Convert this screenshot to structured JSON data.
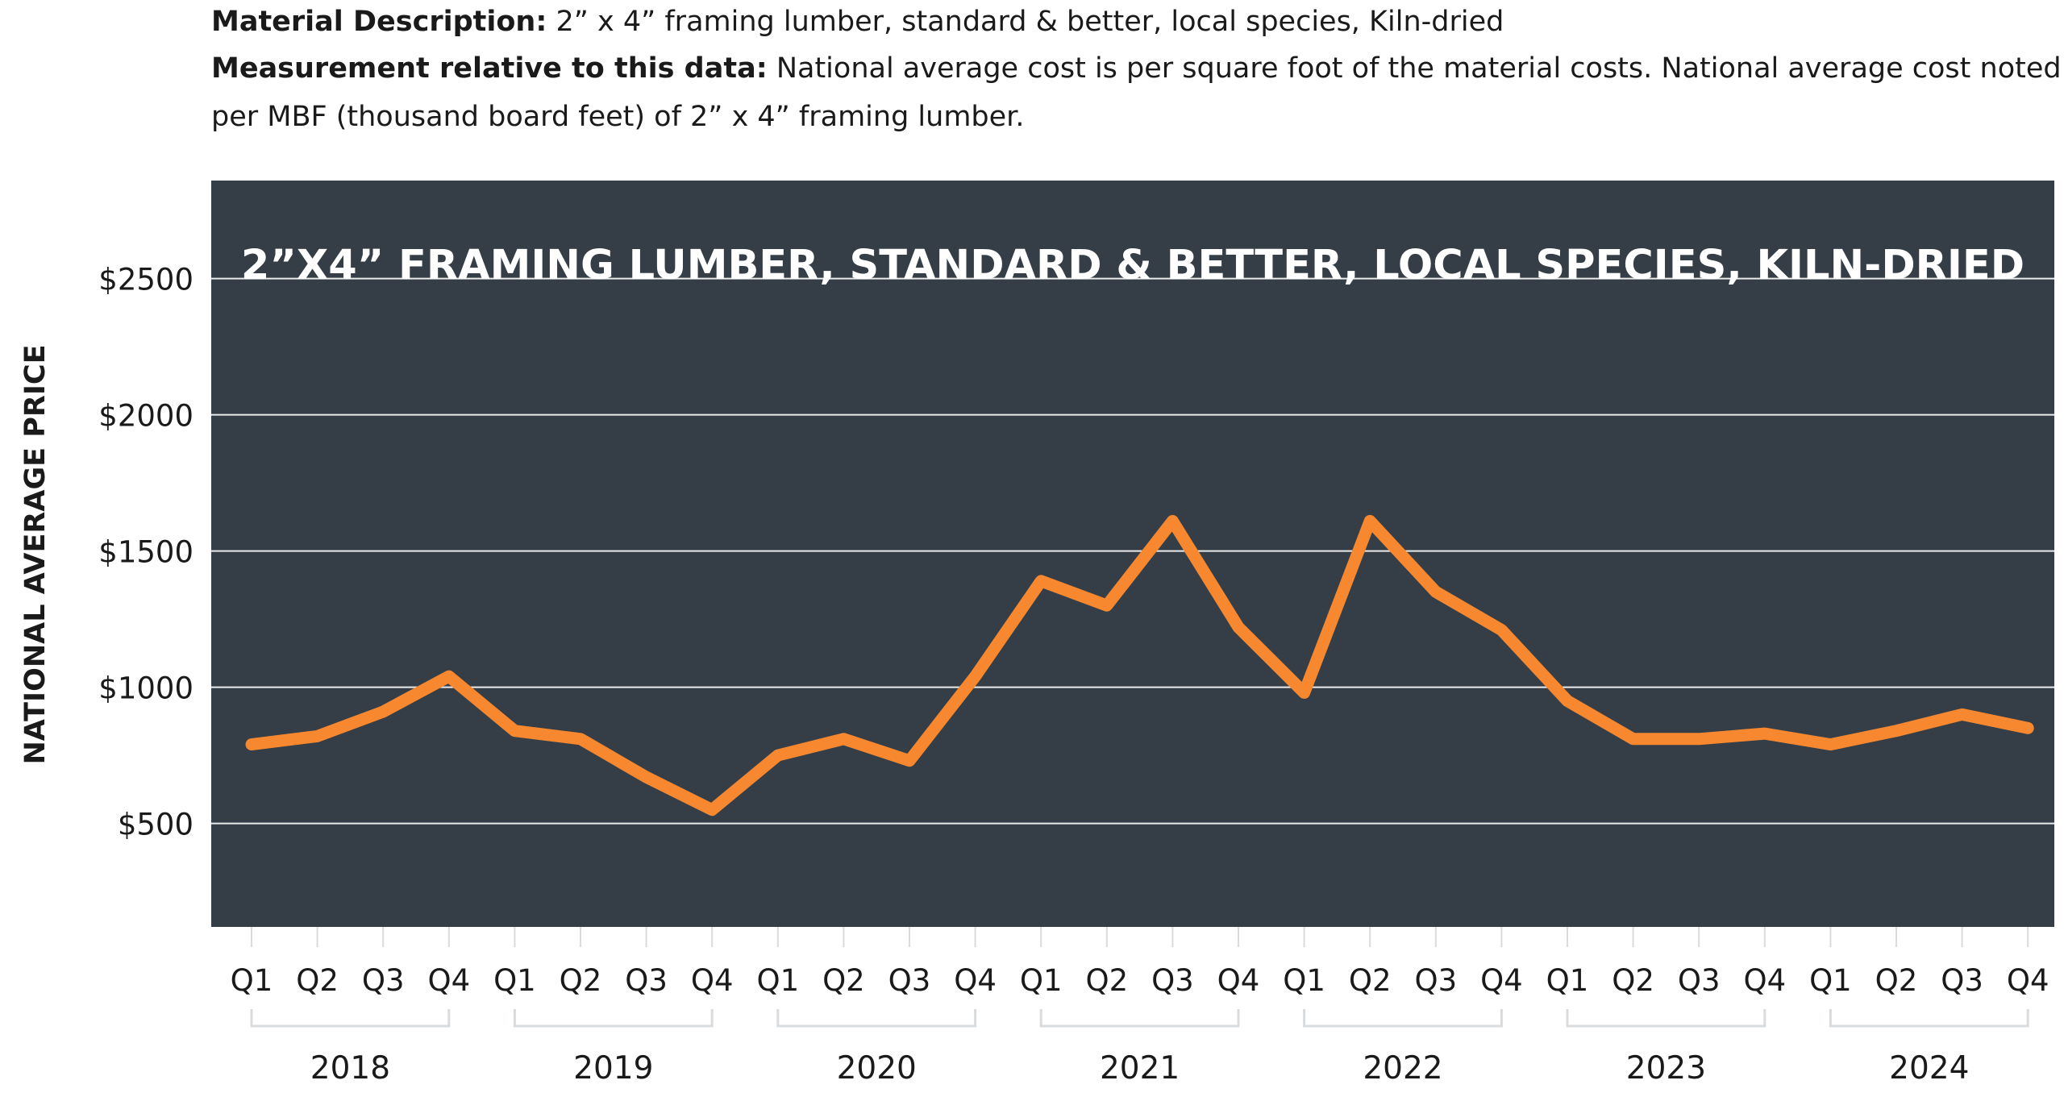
{
  "description": {
    "material_label": "Material Description:",
    "material_text": " 2” x 4” framing lumber, standard & better, local species, Kiln-dried",
    "measurement_label": "Measurement relative to this data:",
    "measurement_text_line1": " National average cost is per square foot of the material costs. National average cost noted is",
    "measurement_text_line2": "per MBF (thousand board feet) of 2” x 4” framing lumber."
  },
  "colors": {
    "panel": "#353e46",
    "line": "#f7882f",
    "grid": "#ffffff",
    "text": "#1a1a1a",
    "bracket": "#d9dcdf"
  },
  "chart_data": {
    "type": "line",
    "title": "2”X4” FRAMING LUMBER, STANDARD & BETTER, LOCAL SPECIES, KILN-DRIED",
    "xlabel": "",
    "ylabel": "NATIONAL AVERAGE PRICE",
    "ylim": [
      120,
      2860
    ],
    "yticks": [
      500,
      1000,
      1500,
      2000,
      2500
    ],
    "ytick_labels": [
      "$500",
      "$1000",
      "$1500",
      "$2000",
      "$2500"
    ],
    "grid": true,
    "legend": "none",
    "categories": [
      "Q1",
      "Q2",
      "Q3",
      "Q4",
      "Q1",
      "Q2",
      "Q3",
      "Q4",
      "Q1",
      "Q2",
      "Q3",
      "Q4",
      "Q1",
      "Q2",
      "Q3",
      "Q4",
      "Q1",
      "Q2",
      "Q3",
      "Q4",
      "Q1",
      "Q2",
      "Q3",
      "Q4",
      "Q1",
      "Q2",
      "Q3",
      "Q4"
    ],
    "year_groups": [
      {
        "label": "2018",
        "start": 0,
        "end": 3
      },
      {
        "label": "2019",
        "start": 4,
        "end": 7
      },
      {
        "label": "2020",
        "start": 8,
        "end": 11
      },
      {
        "label": "2021",
        "start": 12,
        "end": 15
      },
      {
        "label": "2022",
        "start": 16,
        "end": 19
      },
      {
        "label": "2023",
        "start": 20,
        "end": 23
      },
      {
        "label": "2024",
        "start": 24,
        "end": 27
      }
    ],
    "series": [
      {
        "values": [
          790,
          820,
          910,
          1040,
          840,
          810,
          670,
          550,
          750,
          810,
          730,
          1040,
          1390,
          1300,
          1610,
          1220,
          980,
          1610,
          1350,
          1210,
          950,
          810,
          810,
          830,
          790,
          840,
          900,
          850
        ]
      }
    ]
  }
}
